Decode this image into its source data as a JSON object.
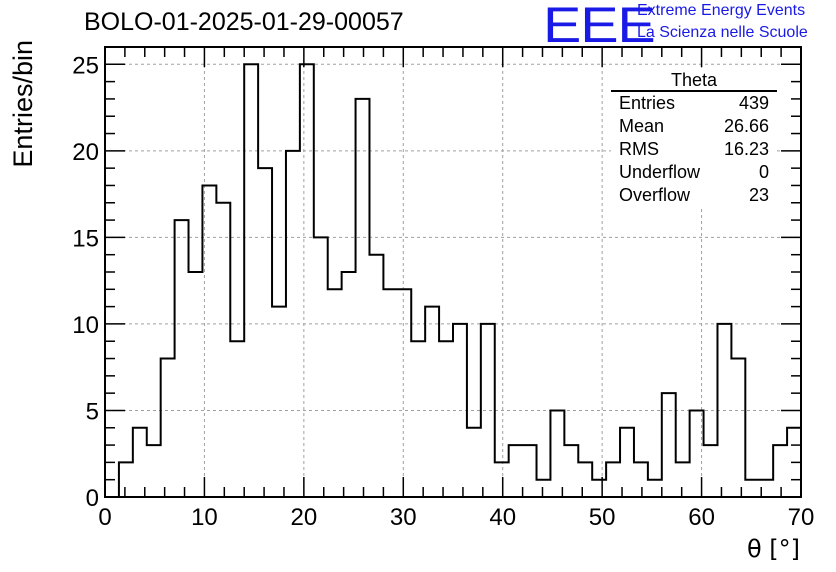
{
  "header": {
    "title": "BOLO-01-2025-01-29-00057",
    "logo_text": "EEE",
    "logo_line1": "Extreme Energy Events",
    "logo_line2": "La Scienza nelle Scuole"
  },
  "stats_box": {
    "name": "Theta",
    "rows": [
      {
        "label": "Entries",
        "value": "439"
      },
      {
        "label": "Mean",
        "value": "26.66"
      },
      {
        "label": "RMS",
        "value": "16.23"
      },
      {
        "label": "Underflow",
        "value": "0"
      },
      {
        "label": "Overflow",
        "value": "23"
      }
    ]
  },
  "chart_data": {
    "type": "bar",
    "style": "step-histogram",
    "bin_width": 1.4,
    "x_start": 0,
    "values": [
      0,
      2,
      4,
      3,
      8,
      16,
      13,
      18,
      17,
      9,
      25,
      19,
      11,
      20,
      25,
      15,
      12,
      13,
      23,
      14,
      12,
      12,
      9,
      11,
      9,
      10,
      4,
      10,
      2,
      3,
      3,
      1,
      5,
      3,
      2,
      1,
      2,
      4,
      2,
      1,
      6,
      2,
      5,
      3,
      10,
      8,
      1,
      1,
      3,
      4
    ],
    "xlabel": "θ [°]",
    "ylabel": "Entries/bin",
    "xlim": [
      0,
      70
    ],
    "ylim": [
      0,
      26
    ],
    "xticks": [
      0,
      10,
      20,
      30,
      40,
      50,
      60,
      70
    ],
    "yticks": [
      0,
      5,
      10,
      15,
      20,
      25
    ],
    "grid": true,
    "line_color": "#000000",
    "grid_color": "#a0a0a0"
  }
}
